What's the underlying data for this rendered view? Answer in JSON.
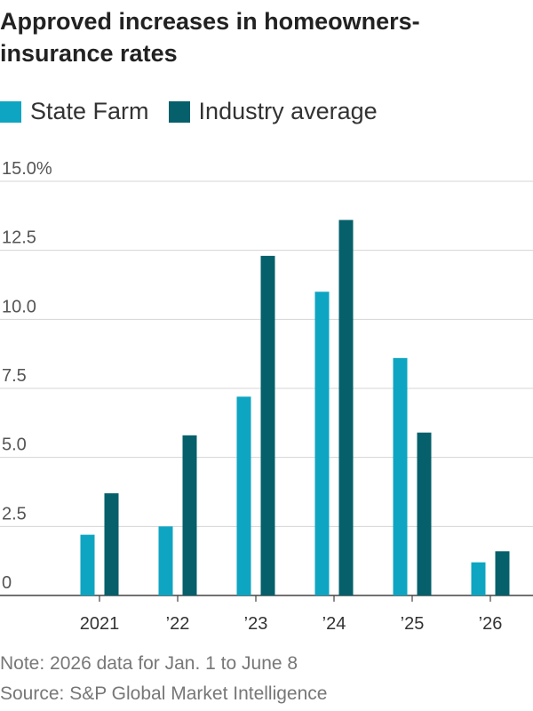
{
  "chart_data": {
    "type": "bar",
    "title": "Approved increases in homeowners-insurance rates",
    "categories": [
      "2021",
      "’22",
      "’23",
      "’24",
      "’25",
      "’26"
    ],
    "series": [
      {
        "name": "State Farm",
        "color": "#0ea5c2",
        "values": [
          2.2,
          2.5,
          7.2,
          11.0,
          8.6,
          1.2
        ]
      },
      {
        "name": "Industry average",
        "color": "#05606b",
        "values": [
          3.7,
          5.8,
          12.3,
          13.6,
          5.9,
          1.6
        ]
      }
    ],
    "y_ticks": [
      "15.0%",
      "12.5",
      "10.0",
      "7.5",
      "5.0",
      "2.5",
      "0"
    ],
    "ylim": [
      0,
      15
    ],
    "grid": true,
    "legend": "top-left"
  },
  "note": "Note: 2026 data for Jan. 1 to June 8",
  "source": "Source: S&P Global Market Intelligence"
}
